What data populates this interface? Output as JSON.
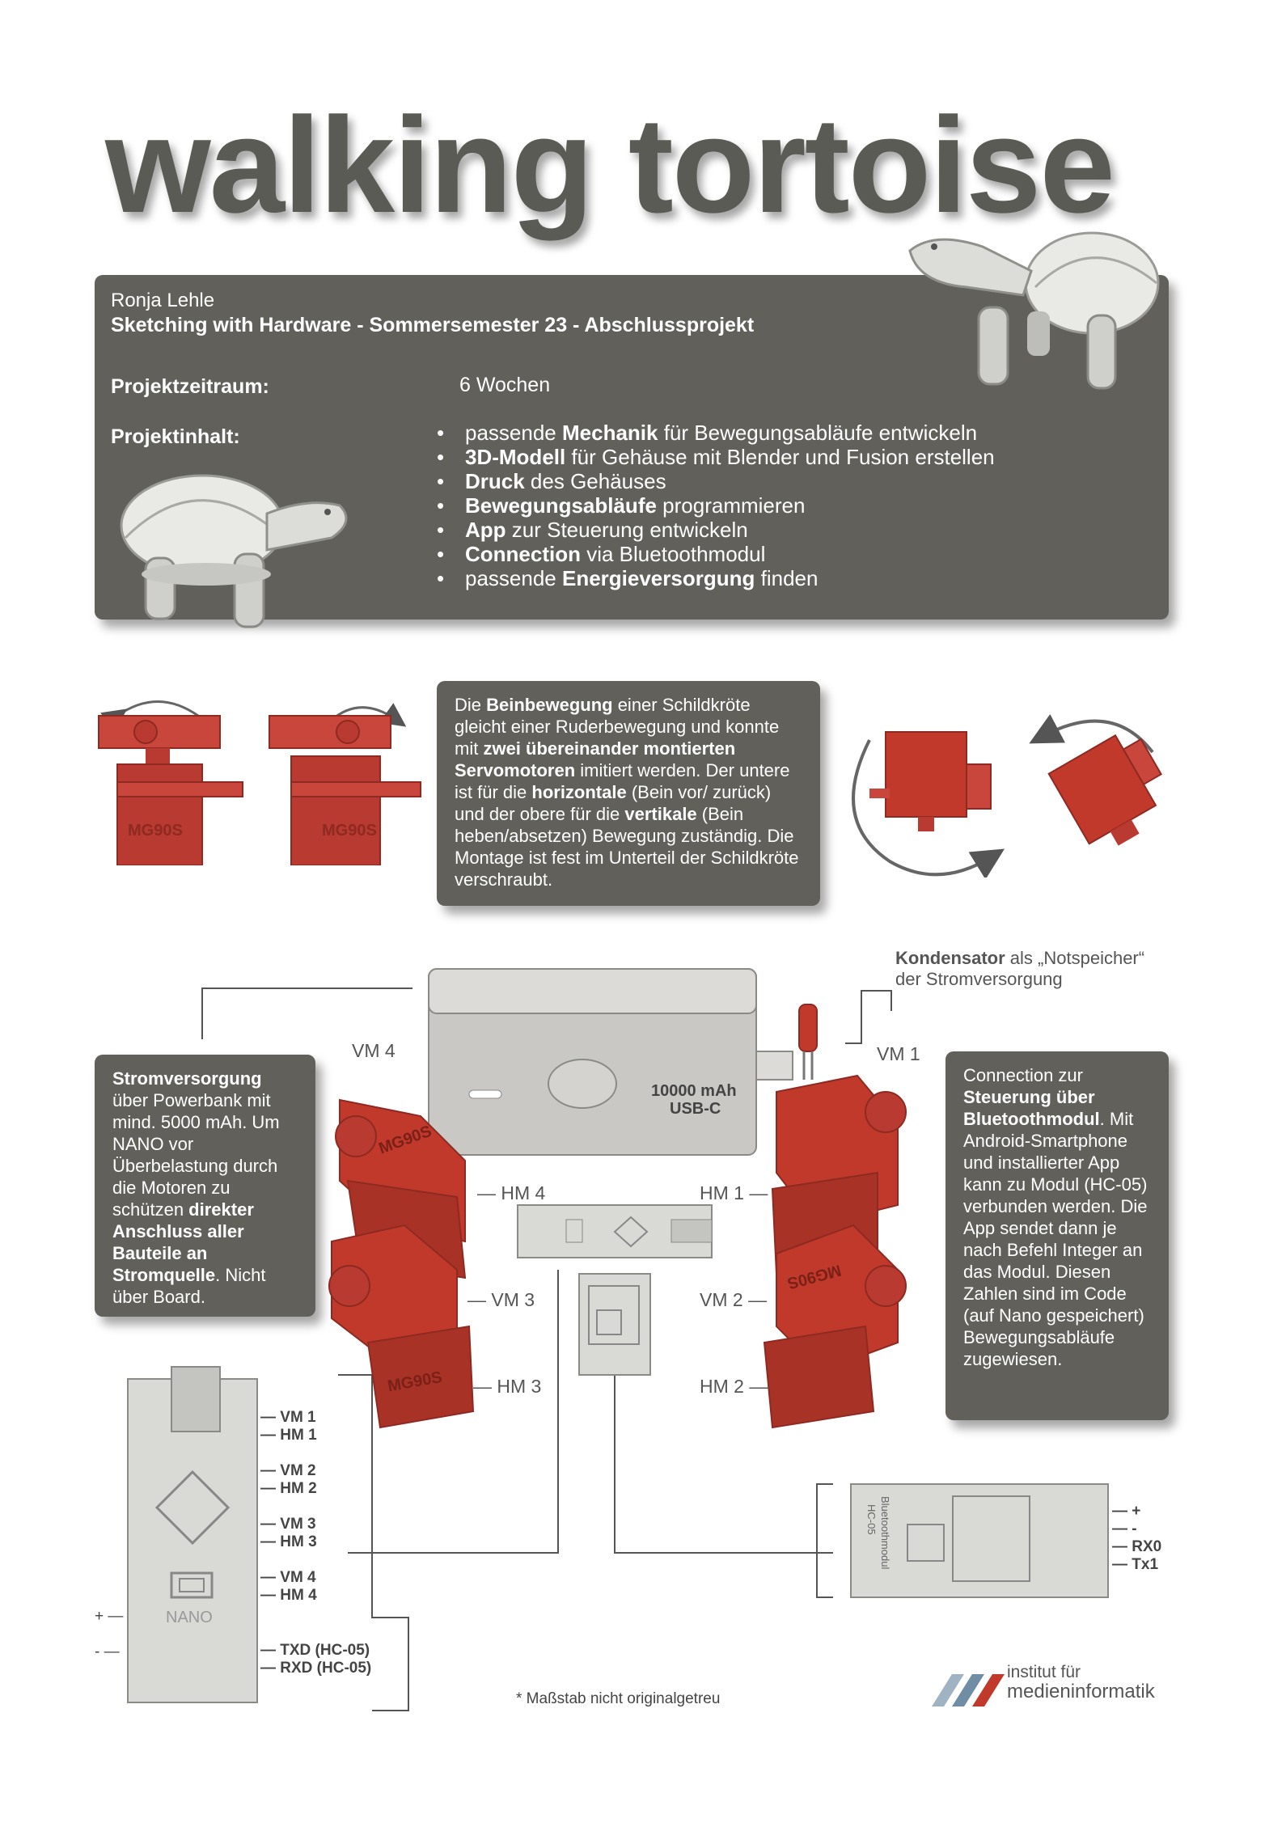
{
  "header": {
    "title": "walking tortoise",
    "author": "Ronja Lehle",
    "course": "Sketching with Hardware - Sommersemester 23 - Abschlussprojekt",
    "period_label": "Projektzeitraum:",
    "period_value": "6 Wochen",
    "content_label": "Projektinhalt:"
  },
  "bullets": [
    {
      "pre": "passende ",
      "b": "Mechanik",
      "post": " für Bewegungsabläufe entwickeln"
    },
    {
      "pre": "",
      "b": "3D-Modell",
      "post": " für Gehäuse mit Blender und Fusion erstellen"
    },
    {
      "pre": "",
      "b": "Druck",
      "post": " des Gehäuses"
    },
    {
      "pre": "",
      "b": "Bewegungsabläufe",
      "post": " programmieren"
    },
    {
      "pre": "",
      "b": "App",
      "post": " zur Steuerung entwickeln"
    },
    {
      "pre": "",
      "b": "Connection",
      "post": " via Bluetoothmodul"
    },
    {
      "pre": "passende ",
      "b": "Energieversorgung",
      "post": " finden"
    }
  ],
  "servo_label": "MG90S",
  "leg_box": [
    {
      "t": "Die "
    },
    {
      "b": "Beinbewegung"
    },
    {
      "t": " einer Schildkröte gleicht einer Ruderbewegung und konnte mit "
    },
    {
      "b": "zwei übereinander montierten Servomotoren"
    },
    {
      "t": " imitiert werden. Der untere ist für die "
    },
    {
      "b": "horizontale"
    },
    {
      "t": " (Bein vor/ zurück) und der obere für die "
    },
    {
      "b": "vertikale"
    },
    {
      "t": " (Bein heben/absetzen) Bewegung zuständig. Die Montage ist fest im Unterteil der Schildkröte verschraubt."
    }
  ],
  "capacitor": {
    "b": "Kondensator",
    "t1": " als „Notspeicher“",
    "t2": "der Stromversorgung"
  },
  "power_box": [
    {
      "b": "Stromversorgung"
    },
    {
      "t": " über Powerbank mit mind. 5000 mAh. Um NANO vor Überbelastung durch die Motoren zu schützen "
    },
    {
      "b": "direkter Anschluss aller Bauteile an Stromquelle"
    },
    {
      "t": ". Nicht über Board."
    }
  ],
  "bt_box": [
    {
      "t": "Connection zur "
    },
    {
      "b": "Steuerung über Bluetoothmodul"
    },
    {
      "t": ". Mit Android-Smartphone und installierter App kann zu Modul (HC-05) verbunden werden. Die App sendet dann je nach Befehl Integer an das Modul. Diesen Zahlen sind im Code (auf Nano gespeichert) Bewegungsabläufe zugewiesen."
    }
  ],
  "powerbank": {
    "line1": "10000 mAh",
    "line2": "USB-C"
  },
  "motor_labels": {
    "vm4": "VM 4",
    "hm4": "— HM 4",
    "vm3": "— VM 3",
    "hm3": "— HM 3",
    "vm1": "VM 1",
    "hm1": "HM 1 —",
    "vm2": "VM 2 —",
    "hm2": "HM 2 —"
  },
  "nano": {
    "name": "NANO",
    "plus": "+ —",
    "minus": "- —",
    "pins": [
      "VM 1",
      "HM 1",
      "VM 2",
      "HM 2",
      "VM 3",
      "HM 3",
      "VM 4",
      "HM 4",
      "TXD (HC-05)",
      "RXD (HC-05)"
    ]
  },
  "hc05": {
    "title": "Bluetoothmodul",
    "model": "HC-05",
    "pins": [
      "+",
      "-",
      "RX0",
      "Tx1"
    ]
  },
  "note": "* Maßstab nicht originalgetreu",
  "logo": {
    "line1": "institut für",
    "line2": "medieninformatik"
  },
  "colors": {
    "panel": "#61605b",
    "servo": "#c0392b",
    "pcb": "#d9d9d6"
  }
}
